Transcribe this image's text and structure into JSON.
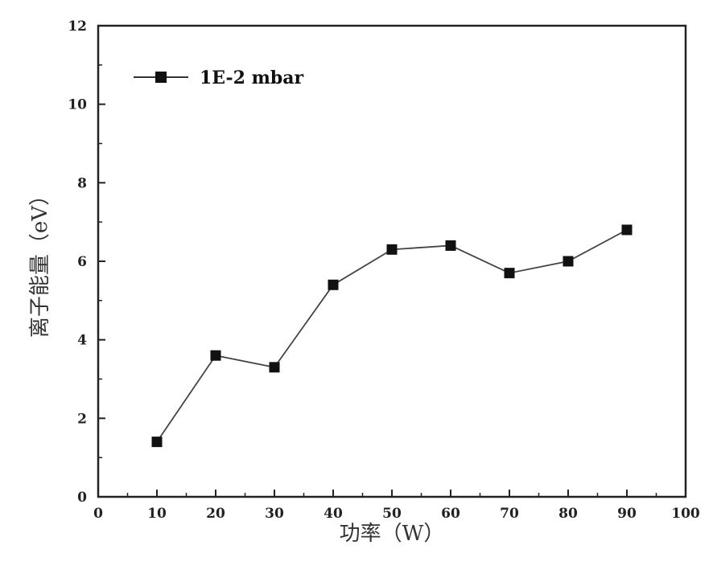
{
  "chart_data": {
    "type": "line",
    "xlabel": "功率（W）",
    "ylabel": "离子能量（eV）",
    "xlim": [
      0,
      100
    ],
    "ylim": [
      0,
      12
    ],
    "xticks": [
      "0",
      "10",
      "20",
      "30",
      "40",
      "50",
      "60",
      "70",
      "80",
      "90",
      "100"
    ],
    "yticks": [
      "0",
      "2",
      "4",
      "6",
      "8",
      "10",
      "12"
    ],
    "grid": false,
    "legend_position": "top-left",
    "series": [
      {
        "name": "1E-2 mbar",
        "marker": "square",
        "color": "#111111",
        "x": [
          10,
          20,
          30,
          40,
          50,
          60,
          70,
          80,
          90
        ],
        "y": [
          1.4,
          3.6,
          3.3,
          5.4,
          6.3,
          6.4,
          5.7,
          6.0,
          6.8
        ]
      }
    ]
  }
}
